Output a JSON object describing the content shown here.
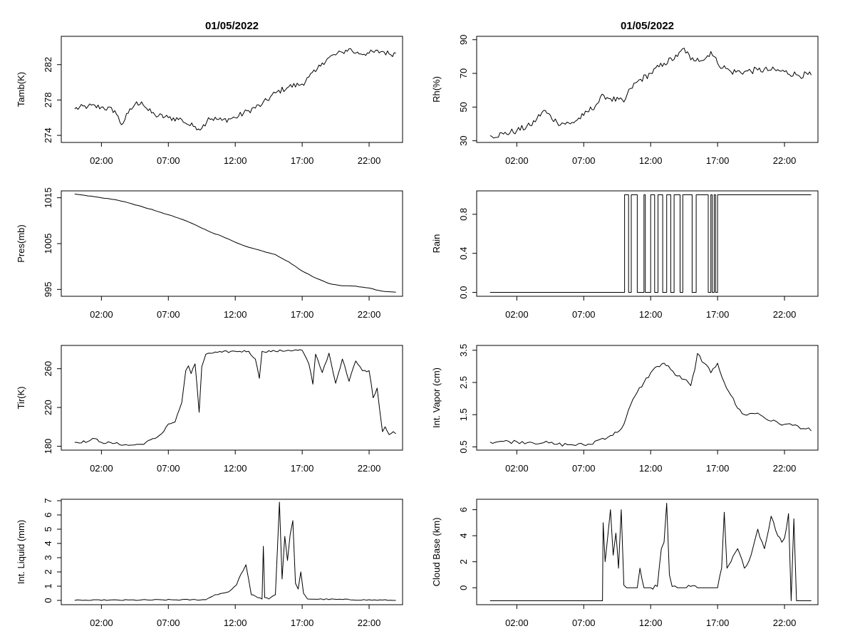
{
  "chart_data": [
    {
      "type": "line",
      "title": "01/05/2022",
      "ylabel": "Tamb(K)",
      "xlim": [
        -1,
        24.5
      ],
      "ylim": [
        273.2,
        285.2
      ],
      "yticks": [
        "274",
        "278",
        "282"
      ],
      "xticks": [
        "02:00",
        "07:00",
        "12:00",
        "17:00",
        "22:00"
      ],
      "x": [
        0,
        1,
        2,
        3,
        3.5,
        4,
        4.5,
        5,
        5.5,
        6,
        7,
        8,
        8.5,
        9,
        9.5,
        10,
        11,
        12,
        13,
        14,
        15,
        16,
        17,
        17.5,
        18,
        18.5,
        19,
        20,
        20.5,
        21,
        22,
        23,
        23.5,
        24
      ],
      "values": [
        277,
        277.3,
        277.2,
        276.8,
        275.2,
        276.5,
        277.5,
        277.8,
        276.8,
        276.3,
        276,
        275.8,
        275.2,
        275,
        274.8,
        276,
        275.7,
        276,
        276.8,
        277.5,
        278.8,
        279.5,
        279.8,
        280.6,
        281.2,
        282.2,
        282.8,
        283.4,
        283.8,
        283.3,
        283.3,
        283.5,
        283.2,
        283.3
      ],
      "grid": false
    },
    {
      "type": "line",
      "title": "01/05/2022",
      "ylabel": "Rh(%)",
      "xlim": [
        -1,
        24.5
      ],
      "ylim": [
        29,
        92
      ],
      "yticks": [
        "30",
        "50",
        "70",
        "90"
      ],
      "xticks": [
        "02:00",
        "07:00",
        "12:00",
        "17:00",
        "22:00"
      ],
      "x": [
        0,
        1,
        2,
        3,
        3.5,
        4,
        5,
        6,
        7,
        8,
        8.5,
        9,
        10,
        10.5,
        11,
        12,
        13,
        14,
        14.5,
        15,
        15.5,
        16,
        16.5,
        17,
        18,
        19,
        20,
        21,
        22,
        23,
        24
      ],
      "values": [
        33,
        34,
        36,
        39,
        43,
        48,
        41,
        40,
        45,
        52,
        57,
        55,
        53,
        61,
        65,
        70,
        76,
        80,
        85,
        78,
        79,
        78,
        83,
        76,
        71,
        71,
        72,
        72,
        71,
        69,
        69
      ],
      "grid": false
    },
    {
      "type": "line",
      "title": "",
      "ylabel": "Pres(mb)",
      "xlim": [
        -1,
        24.5
      ],
      "ylim": [
        993.5,
        1016.5
      ],
      "yticks": [
        "995",
        "1005",
        "1015"
      ],
      "xticks": [
        "02:00",
        "07:00",
        "12:00",
        "17:00",
        "22:00"
      ],
      "x": [
        0,
        1,
        2,
        3,
        4,
        5,
        6,
        7,
        8,
        9,
        10,
        11,
        12,
        13,
        14,
        15,
        16,
        17,
        18,
        19,
        20,
        21,
        22,
        23,
        24
      ],
      "values": [
        1015.8,
        1015.4,
        1015,
        1014.6,
        1013.9,
        1013.1,
        1012.2,
        1011.3,
        1010.3,
        1009.1,
        1007.7,
        1006.6,
        1005.3,
        1004.2,
        1003.4,
        1002.6,
        1001,
        999,
        997.5,
        996.3,
        995.8,
        995.7,
        995.3,
        994.6,
        994.4
      ],
      "grid": false
    },
    {
      "type": "line",
      "title": "",
      "ylabel": "Rain",
      "xlim": [
        -1,
        24.5
      ],
      "ylim": [
        -0.04,
        1.04
      ],
      "yticks": [
        "0.0",
        "0.4",
        "0.8"
      ],
      "xticks": [
        "02:00",
        "07:00",
        "12:00",
        "17:00",
        "22:00"
      ],
      "x": [
        0,
        10.05,
        10.05,
        10.35,
        10.35,
        10.55,
        10.55,
        11.0,
        11.0,
        11.5,
        11.5,
        11.6,
        11.6,
        12.0,
        12.0,
        12.3,
        12.3,
        12.55,
        12.55,
        12.9,
        12.9,
        13.2,
        13.2,
        13.5,
        13.5,
        13.75,
        13.75,
        14.2,
        14.2,
        14.4,
        14.4,
        15.1,
        15.1,
        15.4,
        15.4,
        16.3,
        16.3,
        16.5,
        16.5,
        16.6,
        16.6,
        16.75,
        16.75,
        16.85,
        16.85,
        17.0,
        17.0,
        24
      ],
      "values": [
        0,
        0,
        1,
        1,
        0,
        0,
        1,
        1,
        0,
        0,
        1,
        1,
        0,
        0,
        1,
        1,
        0,
        0,
        1,
        1,
        0,
        0,
        1,
        1,
        0,
        0,
        1,
        1,
        0,
        0,
        1,
        1,
        0,
        0,
        1,
        1,
        0,
        0,
        1,
        1,
        0,
        0,
        1,
        1,
        0,
        0,
        1,
        1
      ],
      "grid": false
    },
    {
      "type": "line",
      "title": "",
      "ylabel": "Tir(K)",
      "xlim": [
        -1,
        24.5
      ],
      "ylim": [
        176,
        284
      ],
      "yticks": [
        "180",
        "220",
        "260"
      ],
      "xticks": [
        "02:00",
        "07:00",
        "12:00",
        "17:00",
        "22:00"
      ],
      "x": [
        0,
        1,
        1.5,
        2,
        3,
        4,
        5,
        6,
        6.5,
        7,
        7.5,
        8,
        8.3,
        8.5,
        8.7,
        9,
        9.3,
        9.5,
        9.8,
        10,
        11,
        12,
        13,
        13.5,
        13.8,
        14,
        15,
        16,
        17,
        17.5,
        17.8,
        18,
        18.5,
        19,
        19.5,
        20,
        20.5,
        21,
        21.5,
        22,
        22.3,
        22.6,
        23,
        23.2,
        23.5,
        23.8,
        24
      ],
      "values": [
        184,
        185,
        188,
        184,
        183,
        181,
        182,
        188,
        193,
        203,
        205,
        225,
        258,
        263,
        255,
        265,
        215,
        262,
        275,
        276,
        277,
        278,
        278,
        270,
        250,
        278,
        278,
        279,
        279,
        265,
        244,
        275,
        256,
        276,
        245,
        270,
        247,
        268,
        258,
        258,
        230,
        240,
        195,
        200,
        192,
        195,
        193
      ],
      "grid": false
    },
    {
      "type": "line",
      "title": "",
      "ylabel": "Int. Vapor (cm)",
      "xlim": [
        -1,
        24.5
      ],
      "ylim": [
        0.4,
        3.65
      ],
      "yticks": [
        "0.5",
        "1.5",
        "2.5",
        "3.5"
      ],
      "xticks": [
        "02:00",
        "07:00",
        "12:00",
        "17:00",
        "22:00"
      ],
      "x": [
        0,
        1,
        2,
        3,
        4,
        5,
        6,
        7,
        7.5,
        8,
        9,
        9.5,
        10,
        10.5,
        11,
        11.5,
        12,
        12.5,
        13,
        13.5,
        14,
        14.5,
        15,
        15.3,
        15.5,
        16,
        16.5,
        17,
        17.5,
        18,
        18.5,
        19,
        20,
        21,
        22,
        23,
        24
      ],
      "values": [
        0.65,
        0.67,
        0.66,
        0.65,
        0.63,
        0.58,
        0.57,
        0.56,
        0.58,
        0.7,
        0.85,
        0.95,
        1.2,
        1.8,
        2.2,
        2.5,
        2.8,
        3.0,
        3.1,
        2.9,
        2.7,
        2.6,
        2.4,
        2.9,
        3.4,
        3.1,
        2.8,
        3.1,
        2.5,
        2.1,
        1.7,
        1.5,
        1.55,
        1.3,
        1.2,
        1.15,
        1.0
      ],
      "grid": false
    },
    {
      "type": "line",
      "title": "",
      "ylabel": "Int. Liquid (mm)",
      "xlim": [
        -1,
        24.5
      ],
      "ylim": [
        -0.3,
        7.1
      ],
      "yticks": [
        "0",
        "1",
        "2",
        "3",
        "4",
        "5",
        "6",
        "7"
      ],
      "xticks": [
        "02:00",
        "07:00",
        "12:00",
        "17:00",
        "22:00"
      ],
      "x": [
        0,
        9.8,
        10.5,
        11.5,
        12.1,
        12.4,
        12.8,
        13.2,
        13.5,
        14.0,
        14.1,
        14.2,
        14.5,
        15.0,
        15.3,
        15.5,
        15.7,
        15.9,
        16.1,
        16.3,
        16.5,
        16.7,
        16.9,
        17.1,
        17.4,
        24
      ],
      "values": [
        0,
        0.05,
        0.4,
        0.6,
        1.1,
        1.8,
        2.5,
        0.4,
        0.3,
        0.1,
        3.8,
        0.2,
        0.1,
        0.4,
        6.9,
        1.5,
        4.5,
        2.8,
        4.6,
        5.6,
        1.2,
        0.8,
        2.0,
        0.5,
        0.1,
        0
      ],
      "grid": false
    },
    {
      "type": "line",
      "title": "",
      "ylabel": "Cloud Base (km)",
      "xlim": [
        -1,
        24.5
      ],
      "ylim": [
        -1.3,
        6.8
      ],
      "yticks": [
        "0",
        "2",
        "4",
        "6"
      ],
      "xticks": [
        "02:00",
        "07:00",
        "12:00",
        "17:00",
        "22:00"
      ],
      "x": [
        0,
        8.4,
        8.45,
        8.6,
        8.8,
        9.0,
        9.2,
        9.4,
        9.5,
        9.6,
        9.8,
        10.0,
        10.2,
        11.0,
        11.2,
        11.5,
        12.0,
        12.5,
        12.8,
        13.0,
        13.2,
        13.4,
        13.6,
        14.0,
        14.5,
        15.0,
        15.5,
        16.0,
        16.5,
        17.0,
        17.3,
        17.5,
        17.7,
        18.0,
        18.5,
        19.0,
        19.5,
        20.0,
        20.5,
        21.0,
        21.5,
        21.8,
        22.0,
        22.3,
        22.5,
        22.7,
        22.9,
        24
      ],
      "values": [
        -1,
        -1,
        5.0,
        2.0,
        4.0,
        6.0,
        2.5,
        4.2,
        3.0,
        1.5,
        6.0,
        0.2,
        0.0,
        0.0,
        1.5,
        0.0,
        0.0,
        0.1,
        3.0,
        3.5,
        6.5,
        1.0,
        0.1,
        0.0,
        0.0,
        0.1,
        0.0,
        0.0,
        0.0,
        0.0,
        1.5,
        5.8,
        1.5,
        2.0,
        3.0,
        1.5,
        2.5,
        4.5,
        3.0,
        5.5,
        4.0,
        3.5,
        3.8,
        5.7,
        -1,
        5.3,
        -1,
        -1
      ],
      "grid": false
    }
  ]
}
